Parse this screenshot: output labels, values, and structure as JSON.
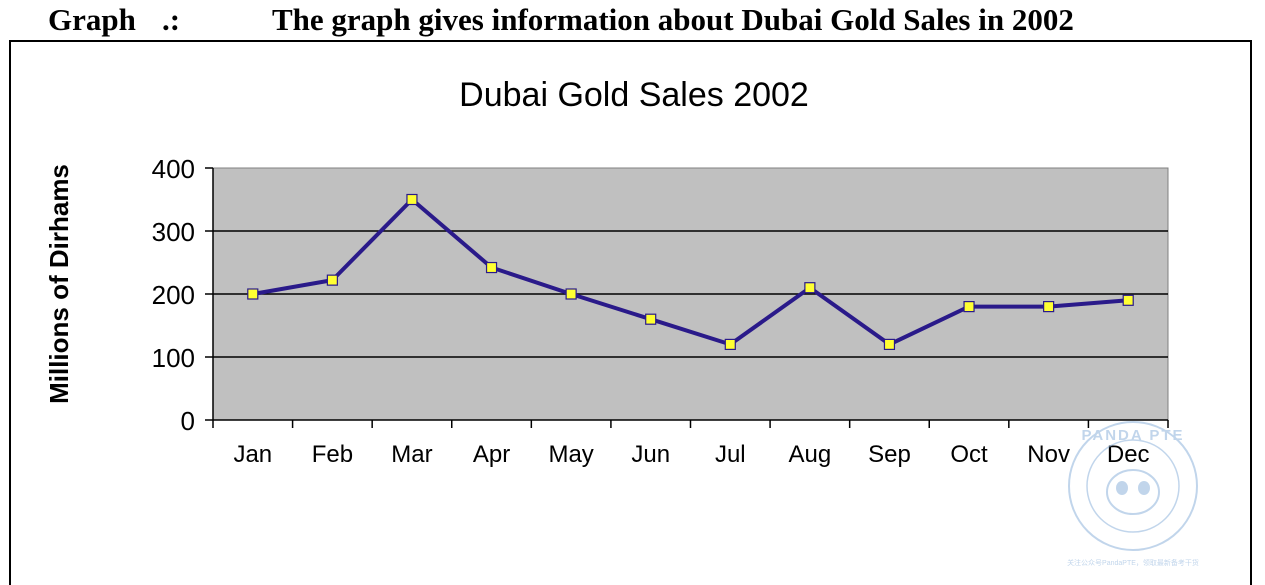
{
  "header": {
    "graph_label": "Graph",
    "colon": ".:",
    "caption": "The graph gives information about Dubai Gold Sales in 2002"
  },
  "watermark": {
    "text_top": "PANDA PTE",
    "text_ring": "Pearson Test of English Academic",
    "text_bottom": "关注公众号PandaPTE，领取最新备考干货"
  },
  "colors": {
    "plot_bg": "#c0c0c0",
    "line": "#2a1a8a",
    "marker": "#ffff33",
    "watermark": "#8fb4dc"
  },
  "chart_data": {
    "type": "line",
    "title": "Dubai Gold Sales 2002",
    "xlabel": "",
    "ylabel": "Millions of Dirhams",
    "categories": [
      "Jan",
      "Feb",
      "Mar",
      "Apr",
      "May",
      "Jun",
      "Jul",
      "Aug",
      "Sep",
      "Oct",
      "Nov",
      "Dec"
    ],
    "series": [
      {
        "values": [
          200,
          222,
          350,
          242,
          200,
          160,
          120,
          210,
          120,
          180,
          180,
          190
        ]
      }
    ],
    "ylim": [
      0,
      400
    ],
    "yticks": [
      0,
      100,
      200,
      300,
      400
    ],
    "grid": true,
    "legend": "none"
  }
}
